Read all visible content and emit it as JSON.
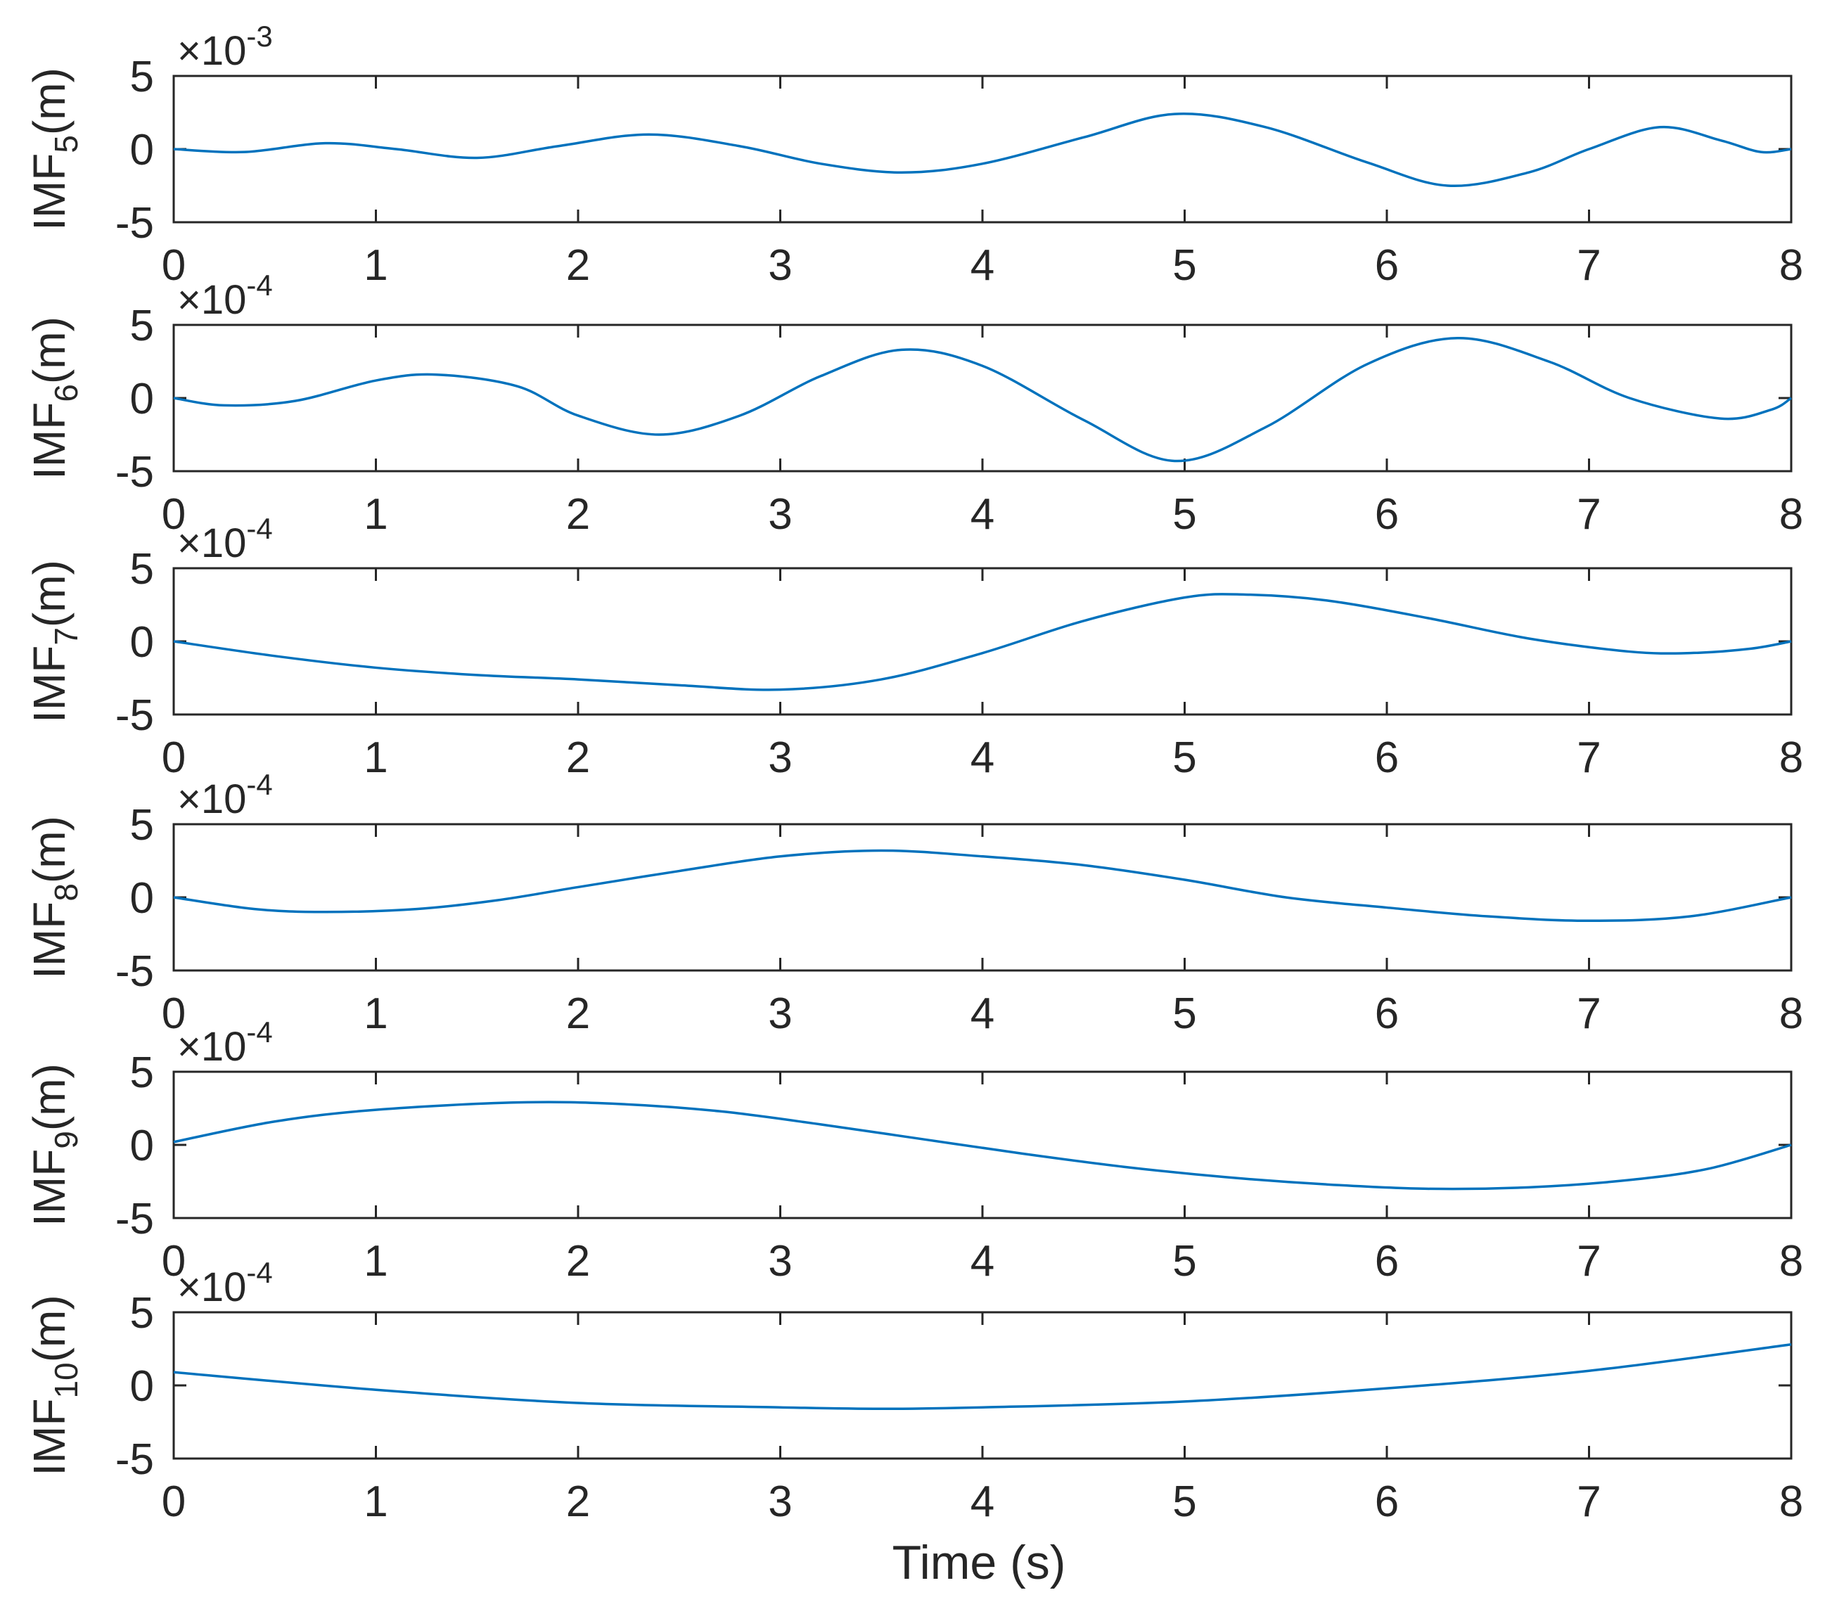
{
  "chart_data": {
    "type": "line",
    "xlabel": "Time (s)",
    "xlim": [
      0,
      8
    ],
    "xticks": [
      "0",
      "1",
      "2",
      "3",
      "4",
      "5",
      "6",
      "7",
      "8"
    ],
    "subplots": [
      {
        "id": "imf5",
        "ylabel_main": "IMF",
        "ylabel_sub": "5",
        "ylabel_unit": "(m)",
        "exponent_label": "×10",
        "exponent_power": "-3",
        "ylim": [
          -5,
          5
        ],
        "yticks": [
          "5",
          "0",
          "-5"
        ],
        "x": [
          0,
          0.35,
          0.75,
          1.1,
          1.5,
          1.9,
          2.35,
          2.8,
          3.2,
          3.6,
          4.0,
          4.5,
          4.95,
          5.4,
          5.9,
          6.3,
          6.7,
          7.0,
          7.35,
          7.65,
          7.85,
          8.0
        ],
        "y": [
          0,
          -0.2,
          0.4,
          0.0,
          -0.6,
          0.2,
          1.0,
          0.2,
          -1.0,
          -1.6,
          -1.0,
          0.8,
          2.4,
          1.5,
          -0.9,
          -2.5,
          -1.6,
          0.0,
          1.5,
          0.6,
          -0.2,
          0.0
        ]
      },
      {
        "id": "imf6",
        "ylabel_main": "IMF",
        "ylabel_sub": "6",
        "ylabel_unit": "(m)",
        "exponent_label": "×10",
        "exponent_power": "-4",
        "ylim": [
          -5,
          5
        ],
        "yticks": [
          "5",
          "0",
          "-5"
        ],
        "x": [
          0,
          0.25,
          0.6,
          1.0,
          1.3,
          1.7,
          2.0,
          2.4,
          2.8,
          3.2,
          3.6,
          4.0,
          4.5,
          4.95,
          5.4,
          5.9,
          6.35,
          6.8,
          7.2,
          7.65,
          7.9,
          8.0
        ],
        "y": [
          0,
          -0.5,
          -0.2,
          1.2,
          1.6,
          0.8,
          -1.2,
          -2.5,
          -1.2,
          1.5,
          3.3,
          2.2,
          -1.5,
          -4.3,
          -2.0,
          2.3,
          4.1,
          2.5,
          0.0,
          -1.4,
          -0.8,
          0.0
        ]
      },
      {
        "id": "imf7",
        "ylabel_main": "IMF",
        "ylabel_sub": "7",
        "ylabel_unit": "(m)",
        "exponent_label": "×10",
        "exponent_power": "-4",
        "ylim": [
          -5,
          5
        ],
        "yticks": [
          "5",
          "0",
          "-5"
        ],
        "x": [
          0,
          0.5,
          1.0,
          1.5,
          2.0,
          2.5,
          3.0,
          3.5,
          4.0,
          4.5,
          5.0,
          5.3,
          5.7,
          6.2,
          6.7,
          7.2,
          7.5,
          7.8,
          8.0
        ],
        "y": [
          0,
          -1.0,
          -1.8,
          -2.3,
          -2.6,
          -3.0,
          -3.3,
          -2.6,
          -0.8,
          1.4,
          3.0,
          3.2,
          2.8,
          1.6,
          0.2,
          -0.7,
          -0.8,
          -0.5,
          0.0
        ]
      },
      {
        "id": "imf8",
        "ylabel_main": "IMF",
        "ylabel_sub": "8",
        "ylabel_unit": "(m)",
        "exponent_label": "×10",
        "exponent_power": "-4",
        "ylim": [
          -5,
          5
        ],
        "yticks": [
          "5",
          "0",
          "-5"
        ],
        "x": [
          0,
          0.4,
          0.75,
          1.2,
          1.6,
          2.0,
          2.5,
          3.0,
          3.5,
          4.0,
          4.5,
          5.0,
          5.5,
          6.0,
          6.5,
          7.0,
          7.5,
          8.0
        ],
        "y": [
          0,
          -0.8,
          -1.0,
          -0.8,
          -0.2,
          0.7,
          1.8,
          2.8,
          3.2,
          2.8,
          2.2,
          1.2,
          0.0,
          -0.7,
          -1.3,
          -1.6,
          -1.3,
          0.0
        ]
      },
      {
        "id": "imf9",
        "ylabel_main": "IMF",
        "ylabel_sub": "9",
        "ylabel_unit": "(m)",
        "exponent_label": "×10",
        "exponent_power": "-4",
        "ylim": [
          -5,
          5
        ],
        "yticks": [
          "5",
          "0",
          "-5"
        ],
        "x": [
          0,
          0.5,
          1.0,
          1.7,
          2.2,
          2.7,
          3.2,
          3.7,
          4.2,
          4.7,
          5.2,
          5.7,
          6.2,
          6.7,
          7.2,
          7.6,
          8.0
        ],
        "y": [
          0.2,
          1.6,
          2.4,
          2.9,
          2.8,
          2.3,
          1.4,
          0.4,
          -0.6,
          -1.5,
          -2.2,
          -2.7,
          -3.0,
          -2.9,
          -2.4,
          -1.6,
          0.0
        ]
      },
      {
        "id": "imf10",
        "ylabel_main": "IMF",
        "ylabel_sub": "10",
        "ylabel_unit": "(m)",
        "exponent_label": "×10",
        "exponent_power": "-4",
        "ylim": [
          -5,
          5
        ],
        "yticks": [
          "5",
          "0",
          "-5"
        ],
        "x": [
          0,
          1.0,
          2.0,
          3.0,
          3.5,
          4.0,
          5.0,
          6.0,
          7.0,
          8.0
        ],
        "y": [
          0.9,
          -0.3,
          -1.2,
          -1.5,
          -1.6,
          -1.5,
          -1.1,
          -0.2,
          1.0,
          2.8
        ]
      }
    ]
  }
}
